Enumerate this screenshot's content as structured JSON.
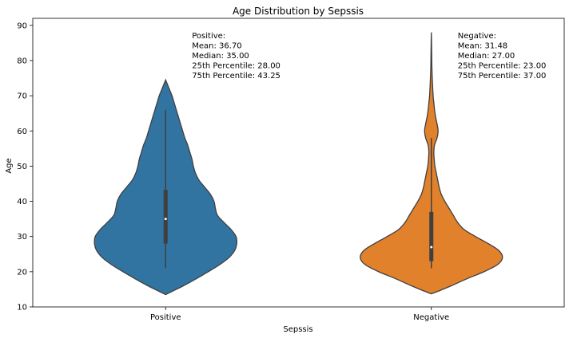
{
  "chart_data": {
    "type": "violin",
    "title": "Age Distribution by Sepssis",
    "xlabel": "Sepssis",
    "ylabel": "Age",
    "categories": [
      "Positive",
      "Negative"
    ],
    "ylim": [
      10,
      92
    ],
    "yticks": [
      10,
      20,
      30,
      40,
      50,
      60,
      70,
      80,
      90
    ],
    "grid": false,
    "series": [
      {
        "category": "Positive",
        "color": "#3274a1",
        "stats": {
          "mean": 36.7,
          "median": 35.0,
          "q1": 28.0,
          "q3": 43.25,
          "whisker_low": 21,
          "whisker_high": 66
        },
        "annotation": [
          "Positive:",
          "Mean: 36.70",
          "Median: 35.00",
          "25th Percentile: 28.00",
          "75th Percentile: 43.25"
        ],
        "profile": [
          [
            13.5,
            0.0
          ],
          [
            14.5,
            0.1
          ],
          [
            16,
            0.25
          ],
          [
            18,
            0.43
          ],
          [
            20,
            0.6
          ],
          [
            22,
            0.76
          ],
          [
            24,
            0.89
          ],
          [
            26,
            0.97
          ],
          [
            28,
            1.0
          ],
          [
            30,
            0.99
          ],
          [
            32,
            0.92
          ],
          [
            34,
            0.82
          ],
          [
            36,
            0.73
          ],
          [
            38,
            0.7
          ],
          [
            40,
            0.68
          ],
          [
            42,
            0.63
          ],
          [
            44,
            0.55
          ],
          [
            46,
            0.47
          ],
          [
            48,
            0.42
          ],
          [
            50,
            0.39
          ],
          [
            52,
            0.37
          ],
          [
            54,
            0.34
          ],
          [
            56,
            0.31
          ],
          [
            58,
            0.27
          ],
          [
            60,
            0.24
          ],
          [
            62,
            0.21
          ],
          [
            64,
            0.18
          ],
          [
            66,
            0.15
          ],
          [
            68,
            0.12
          ],
          [
            70,
            0.09
          ],
          [
            72,
            0.05
          ],
          [
            74.5,
            0.0
          ]
        ]
      },
      {
        "category": "Negative",
        "color": "#e1812c",
        "stats": {
          "mean": 31.48,
          "median": 27.0,
          "q1": 23.0,
          "q3": 37.0,
          "whisker_low": 21,
          "whisker_high": 58
        },
        "annotation": [
          "Negative:",
          "Mean: 31.48",
          "Median: 27.00",
          "25th Percentile: 23.00",
          "75th Percentile: 37.00"
        ],
        "profile": [
          [
            13.7,
            0.0
          ],
          [
            14.5,
            0.1
          ],
          [
            16,
            0.28
          ],
          [
            18,
            0.5
          ],
          [
            20,
            0.74
          ],
          [
            22,
            0.93
          ],
          [
            24,
            1.0
          ],
          [
            26,
            0.95
          ],
          [
            28,
            0.8
          ],
          [
            30,
            0.62
          ],
          [
            32,
            0.46
          ],
          [
            34,
            0.37
          ],
          [
            36,
            0.31
          ],
          [
            38,
            0.25
          ],
          [
            40,
            0.19
          ],
          [
            42,
            0.14
          ],
          [
            44,
            0.11
          ],
          [
            46,
            0.09
          ],
          [
            48,
            0.07
          ],
          [
            50,
            0.05
          ],
          [
            52,
            0.04
          ],
          [
            54,
            0.035
          ],
          [
            56,
            0.045
          ],
          [
            58,
            0.08
          ],
          [
            60,
            0.095
          ],
          [
            62,
            0.08
          ],
          [
            64,
            0.06
          ],
          [
            66,
            0.045
          ],
          [
            68,
            0.035
          ],
          [
            70,
            0.025
          ],
          [
            74,
            0.015
          ],
          [
            78,
            0.008
          ],
          [
            82,
            0.005
          ],
          [
            86,
            0.002
          ],
          [
            88,
            0.0
          ]
        ]
      }
    ]
  }
}
